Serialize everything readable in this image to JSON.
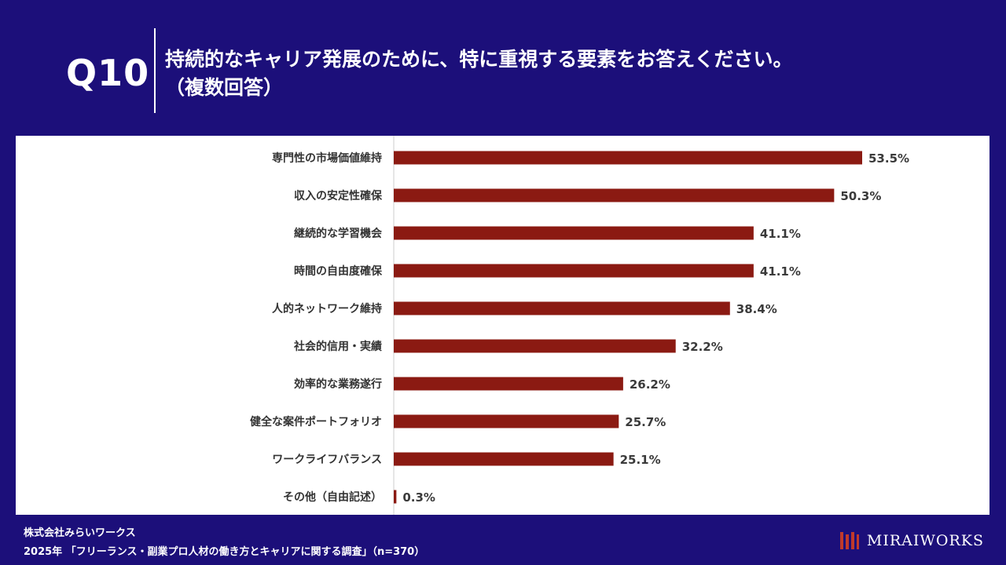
{
  "header": {
    "question_number": "Q10",
    "title_line1": "持続的なキャリア発展のために、特に重視する要素をお答えください。",
    "title_line2": "（複数回答）"
  },
  "footer": {
    "company": "株式会社みらいワークス",
    "source": "2025年 「フリーランス・副業プロ人材の働き方とキャリアに関する調査」（n=370）",
    "brand": "MIRAIWORKS"
  },
  "colors": {
    "background": "#1c0f7a",
    "bar": "#8b1a12",
    "panel": "#ffffff"
  },
  "chart_data": {
    "type": "bar",
    "orientation": "horizontal",
    "categories": [
      "専門性の市場価値維持",
      "収入の安定性確保",
      "継続的な学習機会",
      "時間の自由度確保",
      "人的ネットワーク維持",
      "社会的信用・実績",
      "効率的な業務遂行",
      "健全な案件ポートフォリオ",
      "ワークライフバランス",
      "その他（自由記述）"
    ],
    "values": [
      53.5,
      50.3,
      41.1,
      41.1,
      38.4,
      32.2,
      26.2,
      25.7,
      25.1,
      0.3
    ],
    "value_labels": [
      "53.5%",
      "50.3%",
      "41.1%",
      "41.1%",
      "38.4%",
      "32.2%",
      "26.2%",
      "25.7%",
      "25.1%",
      "0.3%"
    ],
    "unit": "%",
    "xlim": [
      0,
      60
    ],
    "grid": false,
    "legend": "none"
  }
}
